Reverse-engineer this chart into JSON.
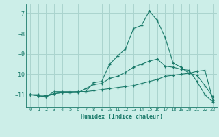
{
  "xlabel": "Humidex (Indice chaleur)",
  "background_color": "#cceee8",
  "grid_color": "#aad4ce",
  "line_color": "#1a7a6a",
  "xlim": [
    -0.5,
    23.5
  ],
  "ylim": [
    -11.6,
    -6.55
  ],
  "yticks": [
    -11,
    -10,
    -9,
    -8,
    -7
  ],
  "xticks": [
    0,
    1,
    2,
    3,
    4,
    5,
    6,
    7,
    8,
    9,
    10,
    11,
    12,
    13,
    14,
    15,
    16,
    17,
    18,
    19,
    20,
    21,
    22,
    23
  ],
  "series1_x": [
    0,
    1,
    2,
    3,
    4,
    5,
    6,
    7,
    8,
    9,
    10,
    11,
    12,
    13,
    14,
    15,
    16,
    17,
    18,
    19,
    20,
    21,
    22,
    23
  ],
  "series1_y": [
    -11.0,
    -11.05,
    -11.1,
    -10.85,
    -10.85,
    -10.85,
    -10.85,
    -10.85,
    -10.4,
    -10.35,
    -9.5,
    -9.1,
    -8.75,
    -7.75,
    -7.6,
    -6.9,
    -7.35,
    -8.2,
    -9.45,
    -9.65,
    -9.95,
    -10.05,
    -10.55,
    -11.1
  ],
  "series2_x": [
    0,
    1,
    2,
    3,
    4,
    5,
    6,
    7,
    8,
    9,
    10,
    11,
    12,
    13,
    14,
    15,
    16,
    17,
    18,
    19,
    20,
    21,
    22,
    23
  ],
  "series2_y": [
    -11.0,
    -11.0,
    -11.05,
    -10.95,
    -10.9,
    -10.9,
    -10.9,
    -10.7,
    -10.5,
    -10.45,
    -10.2,
    -10.1,
    -9.9,
    -9.65,
    -9.5,
    -9.35,
    -9.25,
    -9.6,
    -9.65,
    -9.75,
    -9.8,
    -10.35,
    -11.0,
    -11.35
  ],
  "series3_x": [
    0,
    1,
    2,
    3,
    4,
    5,
    6,
    7,
    8,
    9,
    10,
    11,
    12,
    13,
    14,
    15,
    16,
    17,
    18,
    19,
    20,
    21,
    22,
    23
  ],
  "series3_y": [
    -11.0,
    -11.05,
    -11.1,
    -10.95,
    -10.9,
    -10.9,
    -10.85,
    -10.85,
    -10.8,
    -10.75,
    -10.7,
    -10.65,
    -10.6,
    -10.55,
    -10.45,
    -10.35,
    -10.25,
    -10.1,
    -10.05,
    -10.0,
    -9.95,
    -9.85,
    -9.8,
    -11.25
  ]
}
